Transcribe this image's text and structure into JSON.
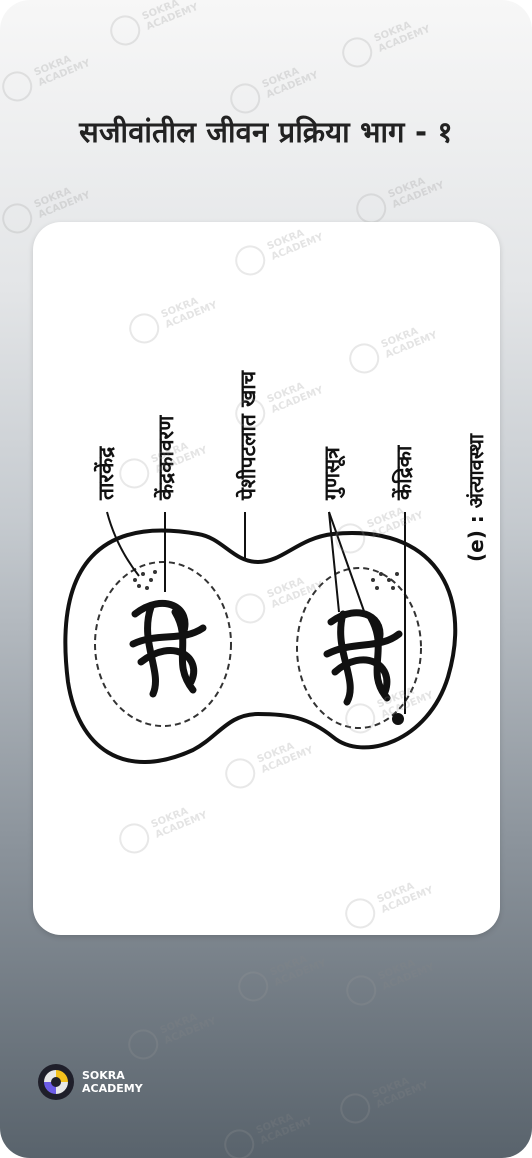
{
  "title": "सजीवांतील जीवन प्रक्रिया भाग - १",
  "diagram": {
    "labels": {
      "centrosome": "तारकेंद्र",
      "nuclear_membrane": "केंद्रकावरण",
      "cleavage_furrow": "पेशीपटलात खाच",
      "chromosome": "गुणसूत्र",
      "nucleolus": "केंद्रिका",
      "caption": "(e) : अंत्यावस्था"
    }
  },
  "watermark": {
    "line1": "SOKRA",
    "line2": "ACADEMY"
  },
  "brand": {
    "line1": "SOKRA",
    "line2": "ACADEMY"
  },
  "colors": {
    "title": "#222222",
    "card": "#ffffff"
  }
}
